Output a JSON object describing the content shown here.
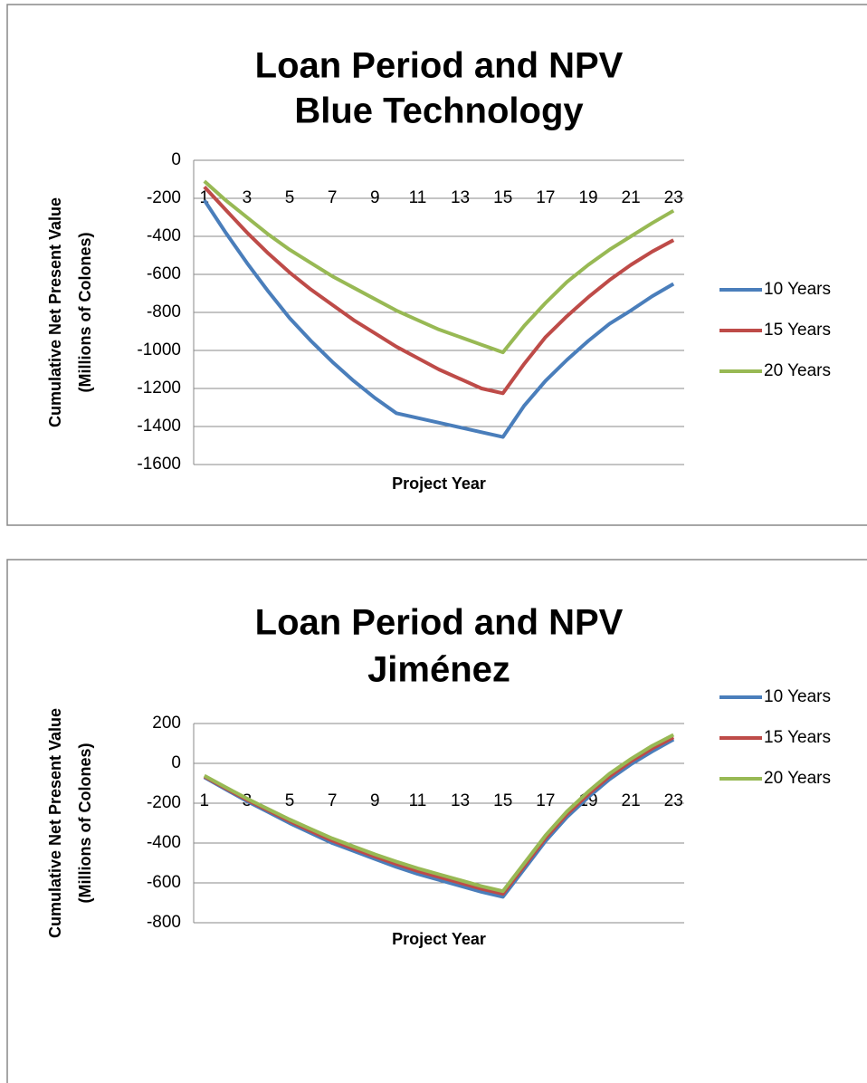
{
  "chart_data": [
    {
      "type": "line",
      "title": "Loan Period and NPV",
      "subtitle": "Blue Technology",
      "xlabel": "Project Year",
      "ylabel": [
        "Cumulative Net Present Value",
        "(Millions of Colones)"
      ],
      "categories": [
        1,
        null,
        3,
        null,
        5,
        null,
        7,
        null,
        9,
        null,
        11,
        null,
        13,
        null,
        15,
        null,
        17,
        null,
        19,
        null,
        21,
        null,
        23
      ],
      "ylim": [
        -1600,
        0
      ],
      "yticks": [
        0,
        -200,
        -400,
        -600,
        -800,
        -1000,
        -1200,
        -1400,
        -1600
      ],
      "grid": true,
      "legend": "right",
      "series": [
        {
          "name": "10 Years",
          "color": "#4a7ebb",
          "values": [
            -210,
            -380,
            -540,
            -690,
            -830,
            -950,
            -1060,
            -1160,
            -1250,
            -1330,
            -1355,
            -1380,
            -1405,
            -1430,
            -1455,
            -1290,
            -1160,
            -1050,
            -950,
            -860,
            -790,
            -715,
            -650
          ]
        },
        {
          "name": "15 Years",
          "color": "#be4b48",
          "values": [
            -140,
            -260,
            -380,
            -490,
            -590,
            -680,
            -760,
            -840,
            -910,
            -980,
            -1040,
            -1100,
            -1150,
            -1200,
            -1225,
            -1070,
            -930,
            -820,
            -720,
            -630,
            -550,
            -480,
            -420
          ]
        },
        {
          "name": "20 Years",
          "color": "#98b954",
          "values": [
            -110,
            -210,
            -300,
            -390,
            -470,
            -540,
            -610,
            -670,
            -730,
            -790,
            -840,
            -890,
            -930,
            -970,
            -1010,
            -870,
            -750,
            -640,
            -550,
            -470,
            -400,
            -330,
            -265
          ]
        }
      ]
    },
    {
      "type": "line",
      "title": "Loan Period and NPV",
      "subtitle": "Jiménez",
      "xlabel": "Project Year",
      "ylabel": [
        "Cumulative Net Present Value",
        "(Millions of Colones)"
      ],
      "categories": [
        1,
        null,
        3,
        null,
        5,
        null,
        7,
        null,
        9,
        null,
        11,
        null,
        13,
        null,
        15,
        null,
        17,
        null,
        19,
        null,
        21,
        null,
        23
      ],
      "ylim": [
        -800,
        200
      ],
      "yticks": [
        200,
        0,
        -200,
        -400,
        -600,
        -800
      ],
      "grid": true,
      "legend": "right",
      "series": [
        {
          "name": "10 Years",
          "color": "#4a7ebb",
          "values": [
            -70,
            -130,
            -190,
            -245,
            -300,
            -350,
            -400,
            -440,
            -480,
            -520,
            -555,
            -585,
            -615,
            -645,
            -670,
            -530,
            -390,
            -270,
            -170,
            -80,
            -5,
            60,
            120
          ]
        },
        {
          "name": "15 Years",
          "color": "#be4b48",
          "values": [
            -66,
            -125,
            -183,
            -237,
            -290,
            -340,
            -388,
            -428,
            -468,
            -505,
            -540,
            -570,
            -600,
            -630,
            -655,
            -515,
            -375,
            -255,
            -155,
            -65,
            10,
            75,
            130
          ]
        },
        {
          "name": "20 Years",
          "color": "#98b954",
          "values": [
            -62,
            -120,
            -177,
            -230,
            -282,
            -330,
            -377,
            -417,
            -457,
            -493,
            -527,
            -557,
            -587,
            -617,
            -642,
            -502,
            -362,
            -242,
            -142,
            -52,
            22,
            88,
            143
          ]
        }
      ]
    }
  ]
}
